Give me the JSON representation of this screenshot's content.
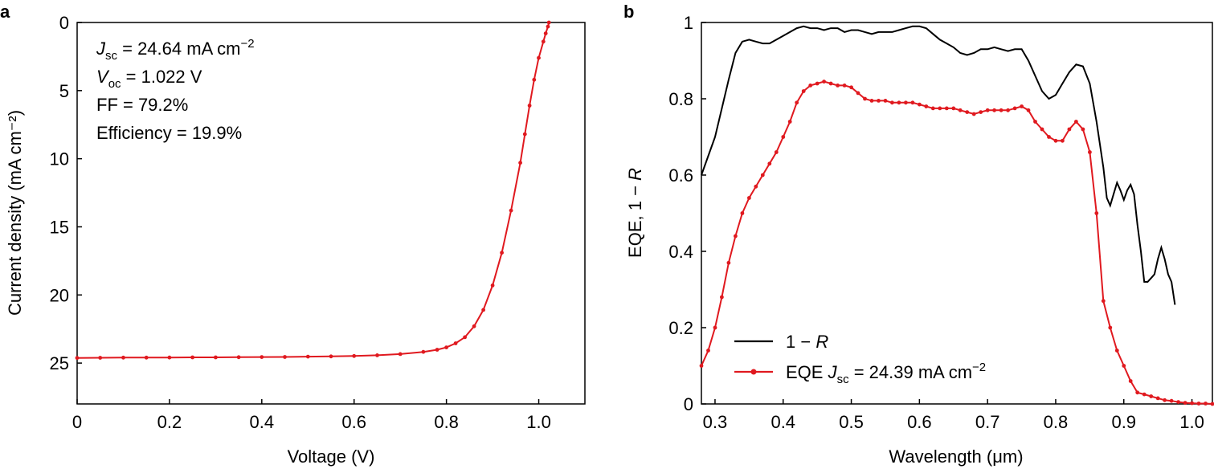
{
  "chart_data": [
    {
      "panel": "a",
      "type": "line",
      "xlabel": "Voltage (V)",
      "ylabel": "Current density (mA cm⁻²)",
      "xlim": [
        0,
        1.1
      ],
      "ylim": [
        0,
        28
      ],
      "y_inverted": true,
      "xticks": [
        0,
        0.2,
        0.4,
        0.6,
        0.8,
        1.0
      ],
      "xtick_labels": [
        "0",
        "0.2",
        "0.4",
        "0.6",
        "0.8",
        "1.0"
      ],
      "yticks": [
        0,
        5,
        10,
        15,
        20,
        25
      ],
      "ytick_labels": [
        "0",
        "5",
        "10",
        "15",
        "20",
        "25"
      ],
      "annotations": [
        {
          "main": "J",
          "sub": "sc",
          "rest": " = 24.64 mA cm",
          "sup": "−2"
        },
        {
          "main": "V",
          "sub": "oc",
          "rest": " = 1.022 V",
          "sup": ""
        },
        {
          "main": "",
          "sub": "",
          "rest": "FF = 79.2%",
          "sup": ""
        },
        {
          "main": "",
          "sub": "",
          "rest": "Efficiency = 19.9%",
          "sup": ""
        }
      ],
      "series": [
        {
          "color": "#e0191f",
          "x": [
            0,
            0.05,
            0.1,
            0.15,
            0.2,
            0.25,
            0.3,
            0.35,
            0.4,
            0.45,
            0.5,
            0.55,
            0.6,
            0.65,
            0.7,
            0.75,
            0.78,
            0.8,
            0.82,
            0.84,
            0.86,
            0.88,
            0.9,
            0.92,
            0.94,
            0.96,
            0.97,
            0.98,
            0.99,
            1.0,
            1.01,
            1.015,
            1.02,
            1.022
          ],
          "y": [
            24.62,
            24.61,
            24.6,
            24.6,
            24.59,
            24.58,
            24.58,
            24.57,
            24.56,
            24.55,
            24.53,
            24.51,
            24.48,
            24.43,
            24.34,
            24.18,
            24.02,
            23.85,
            23.55,
            23.1,
            22.3,
            21.1,
            19.3,
            16.9,
            13.8,
            10.3,
            8.2,
            6.1,
            4.2,
            2.6,
            1.4,
            0.8,
            0.3,
            0.0
          ]
        }
      ]
    },
    {
      "panel": "b",
      "type": "line",
      "xlabel": "Wavelength (μm)",
      "ylabel": "EQE, 1 − R",
      "xlim": [
        0.28,
        1.03
      ],
      "ylim": [
        0,
        1
      ],
      "xticks": [
        0.3,
        0.4,
        0.5,
        0.6,
        0.7,
        0.8,
        0.9,
        1.0
      ],
      "xtick_labels": [
        "0.3",
        "0.4",
        "0.5",
        "0.6",
        "0.7",
        "0.8",
        "0.9",
        "1.0"
      ],
      "yticks": [
        0,
        0.2,
        0.4,
        0.6,
        0.8,
        1.0
      ],
      "ytick_labels": [
        "0",
        "0.2",
        "0.4",
        "0.6",
        "0.8",
        "1"
      ],
      "legend_position": "bottom-left",
      "legend": [
        {
          "text": "1 − R",
          "color": "#000000"
        },
        {
          "text": "EQE J",
          "sub": "sc",
          "rest": " = 24.39 mA cm",
          "sup": "−2",
          "color": "#e0191f"
        }
      ],
      "series": [
        {
          "name": "1 − R",
          "color": "#000000",
          "x": [
            0.28,
            0.3,
            0.32,
            0.33,
            0.34,
            0.35,
            0.36,
            0.37,
            0.38,
            0.39,
            0.4,
            0.41,
            0.42,
            0.43,
            0.44,
            0.45,
            0.46,
            0.47,
            0.48,
            0.49,
            0.5,
            0.51,
            0.52,
            0.53,
            0.54,
            0.55,
            0.56,
            0.57,
            0.58,
            0.59,
            0.6,
            0.61,
            0.62,
            0.63,
            0.64,
            0.65,
            0.66,
            0.67,
            0.68,
            0.69,
            0.7,
            0.71,
            0.72,
            0.73,
            0.74,
            0.75,
            0.76,
            0.77,
            0.78,
            0.79,
            0.8,
            0.81,
            0.82,
            0.83,
            0.84,
            0.85,
            0.86,
            0.87,
            0.875,
            0.88,
            0.885,
            0.89,
            0.895,
            0.9,
            0.905,
            0.91,
            0.915,
            0.92,
            0.925,
            0.93,
            0.935,
            0.94,
            0.945,
            0.95,
            0.955,
            0.96,
            0.965,
            0.97,
            0.975
          ],
          "y": [
            0.6,
            0.7,
            0.85,
            0.92,
            0.95,
            0.955,
            0.95,
            0.945,
            0.945,
            0.955,
            0.965,
            0.975,
            0.985,
            0.99,
            0.985,
            0.985,
            0.98,
            0.985,
            0.985,
            0.975,
            0.98,
            0.98,
            0.975,
            0.97,
            0.975,
            0.975,
            0.975,
            0.98,
            0.985,
            0.99,
            0.99,
            0.985,
            0.97,
            0.955,
            0.945,
            0.935,
            0.92,
            0.915,
            0.92,
            0.93,
            0.93,
            0.935,
            0.93,
            0.925,
            0.93,
            0.93,
            0.9,
            0.86,
            0.82,
            0.8,
            0.81,
            0.84,
            0.87,
            0.89,
            0.885,
            0.84,
            0.74,
            0.62,
            0.54,
            0.52,
            0.55,
            0.58,
            0.56,
            0.535,
            0.56,
            0.575,
            0.55,
            0.47,
            0.4,
            0.32,
            0.32,
            0.33,
            0.34,
            0.38,
            0.41,
            0.38,
            0.34,
            0.32,
            0.26
          ]
        },
        {
          "name": "EQE",
          "color": "#e0191f",
          "x": [
            0.28,
            0.29,
            0.3,
            0.31,
            0.32,
            0.33,
            0.34,
            0.35,
            0.36,
            0.37,
            0.38,
            0.39,
            0.4,
            0.41,
            0.42,
            0.43,
            0.44,
            0.45,
            0.46,
            0.47,
            0.48,
            0.49,
            0.5,
            0.51,
            0.52,
            0.53,
            0.54,
            0.55,
            0.56,
            0.57,
            0.58,
            0.59,
            0.6,
            0.61,
            0.62,
            0.63,
            0.64,
            0.65,
            0.66,
            0.67,
            0.68,
            0.69,
            0.7,
            0.71,
            0.72,
            0.73,
            0.74,
            0.75,
            0.76,
            0.77,
            0.78,
            0.79,
            0.8,
            0.81,
            0.82,
            0.83,
            0.84,
            0.85,
            0.86,
            0.87,
            0.88,
            0.89,
            0.9,
            0.91,
            0.92,
            0.93,
            0.94,
            0.95,
            0.96,
            0.97,
            0.98,
            0.99,
            1.0,
            1.01,
            1.02,
            1.03
          ],
          "y": [
            0.1,
            0.14,
            0.2,
            0.28,
            0.37,
            0.44,
            0.5,
            0.54,
            0.57,
            0.6,
            0.63,
            0.66,
            0.7,
            0.74,
            0.79,
            0.82,
            0.835,
            0.84,
            0.845,
            0.84,
            0.835,
            0.835,
            0.83,
            0.815,
            0.8,
            0.795,
            0.795,
            0.795,
            0.79,
            0.79,
            0.79,
            0.79,
            0.785,
            0.78,
            0.775,
            0.775,
            0.775,
            0.775,
            0.77,
            0.765,
            0.76,
            0.765,
            0.77,
            0.77,
            0.77,
            0.77,
            0.775,
            0.78,
            0.77,
            0.74,
            0.72,
            0.7,
            0.69,
            0.69,
            0.72,
            0.74,
            0.72,
            0.66,
            0.5,
            0.27,
            0.2,
            0.14,
            0.1,
            0.06,
            0.03,
            0.025,
            0.02,
            0.015,
            0.01,
            0.008,
            0.005,
            0.003,
            0.002,
            0.001,
            0.001,
            0.0
          ]
        }
      ]
    }
  ]
}
